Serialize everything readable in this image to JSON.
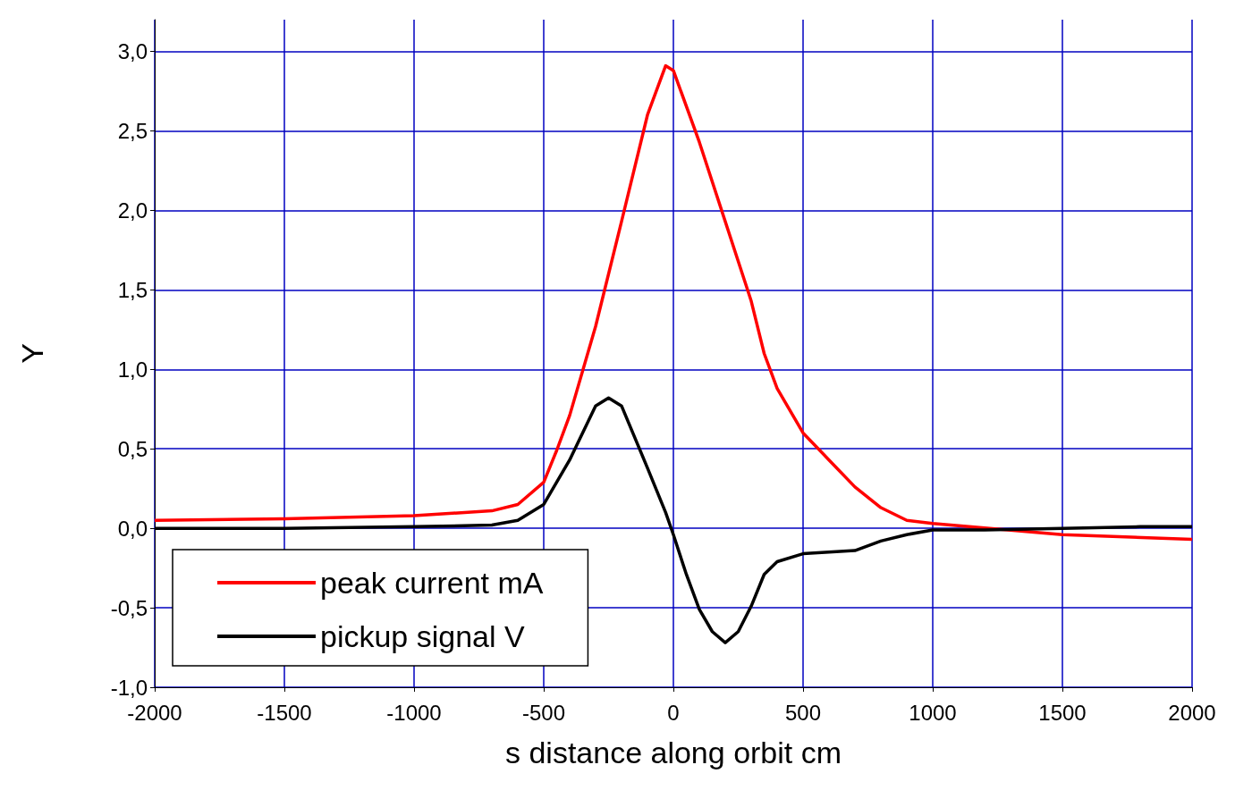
{
  "chart_data": {
    "type": "line",
    "xlabel": "s distance along orbit cm",
    "ylabel": "Y",
    "xlim": [
      -2000,
      2000
    ],
    "xticks": [
      -2000,
      -1500,
      -1000,
      -500,
      0,
      500,
      1000,
      1500,
      2000
    ],
    "ylim": [
      -1,
      3.2
    ],
    "yticks": [
      {
        "value": -1,
        "label": "-1,0"
      },
      {
        "value": -0.5,
        "label": "-0,5"
      },
      {
        "value": 0,
        "label": "0,0"
      },
      {
        "value": 0.5,
        "label": "0,5"
      },
      {
        "value": 1,
        "label": "1,0"
      },
      {
        "value": 1.5,
        "label": "1,5"
      },
      {
        "value": 2,
        "label": "2,0"
      },
      {
        "value": 2.5,
        "label": "2,5"
      },
      {
        "value": 3,
        "label": "3,0"
      }
    ],
    "grid": true,
    "legend": "bottom left",
    "marker": "none",
    "line_style": "solid",
    "series": [
      {
        "name": "peak current mA",
        "color": "#ff0000",
        "x": [
          -2000,
          -1500,
          -1000,
          -700,
          -600,
          -500,
          -450,
          -400,
          -300,
          -200,
          -100,
          -30,
          0,
          100,
          200,
          300,
          350,
          400,
          500,
          600,
          700,
          800,
          900,
          1000,
          1500,
          2000
        ],
        "values": [
          0.05,
          0.06,
          0.08,
          0.11,
          0.15,
          0.29,
          0.49,
          0.71,
          1.27,
          1.93,
          2.6,
          2.91,
          2.88,
          2.43,
          1.93,
          1.43,
          1.1,
          0.88,
          0.6,
          0.43,
          0.26,
          0.13,
          0.05,
          0.03,
          -0.04,
          -0.07
        ]
      },
      {
        "name": "pickup signal V",
        "color": "#000000",
        "x": [
          -2000,
          -1500,
          -1000,
          -700,
          -600,
          -500,
          -400,
          -300,
          -250,
          -200,
          -100,
          -30,
          0,
          50,
          100,
          150,
          200,
          250,
          300,
          350,
          400,
          500,
          600,
          700,
          800,
          900,
          1000,
          1200,
          1500,
          1800,
          2000
        ],
        "values": [
          0.0,
          0.0,
          0.01,
          0.02,
          0.05,
          0.15,
          0.43,
          0.77,
          0.82,
          0.77,
          0.38,
          0.1,
          -0.04,
          -0.29,
          -0.51,
          -0.65,
          -0.72,
          -0.65,
          -0.49,
          -0.29,
          -0.21,
          -0.16,
          -0.15,
          -0.14,
          -0.08,
          -0.04,
          -0.01,
          -0.01,
          0.0,
          0.01,
          0.01
        ]
      }
    ]
  }
}
